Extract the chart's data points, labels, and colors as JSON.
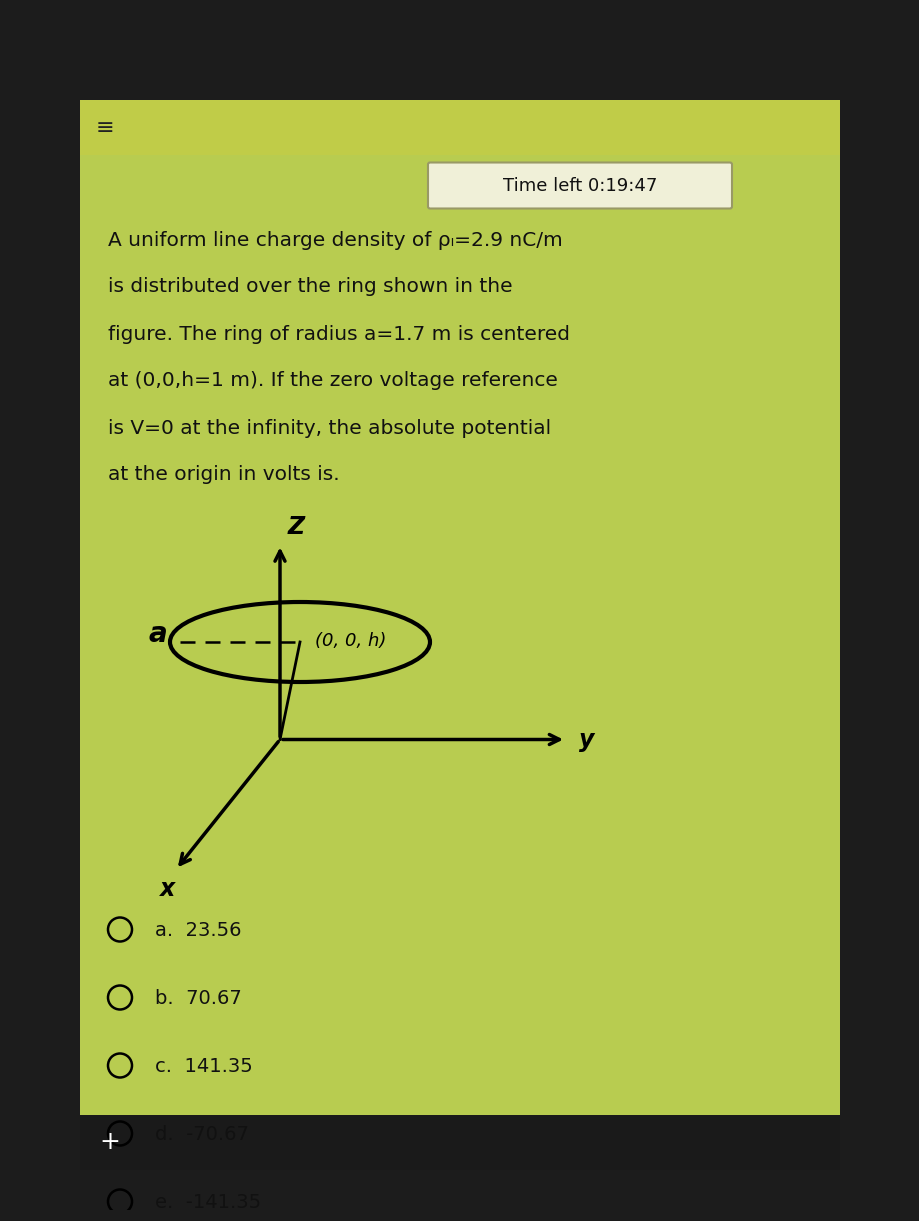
{
  "title_timer": "Time left 0:19:47",
  "problem_text_lines": [
    "A uniform line charge density of ρₗ=2.9 nC/m",
    "is distributed over the ring shown in the",
    "figure. The ring of radius a=1.7 m is centered",
    "at (0,0,h=1 m). If the zero voltage reference",
    "is V=0 at the infinity, the absolute potential",
    "at the origin in volts is."
  ],
  "choices": [
    "a.  23.56",
    "b.  70.67",
    "c.  141.35",
    "d.  -70.67",
    "e.  -141.35"
  ],
  "bg_dark": "#1c1c1c",
  "bg_green": "#b8cc50",
  "bg_green2": "#c8d855",
  "bg_nav": "#2a2a2a",
  "text_color": "#111111",
  "timer_box_edge": "#999966",
  "timer_box_face": "#f0f0d8",
  "timer_text_color": "#111111",
  "ellipse_color": "#000000",
  "axis_color": "#000000",
  "choice_text_color": "#111111",
  "bottom_bar_color": "#1a1a1a"
}
